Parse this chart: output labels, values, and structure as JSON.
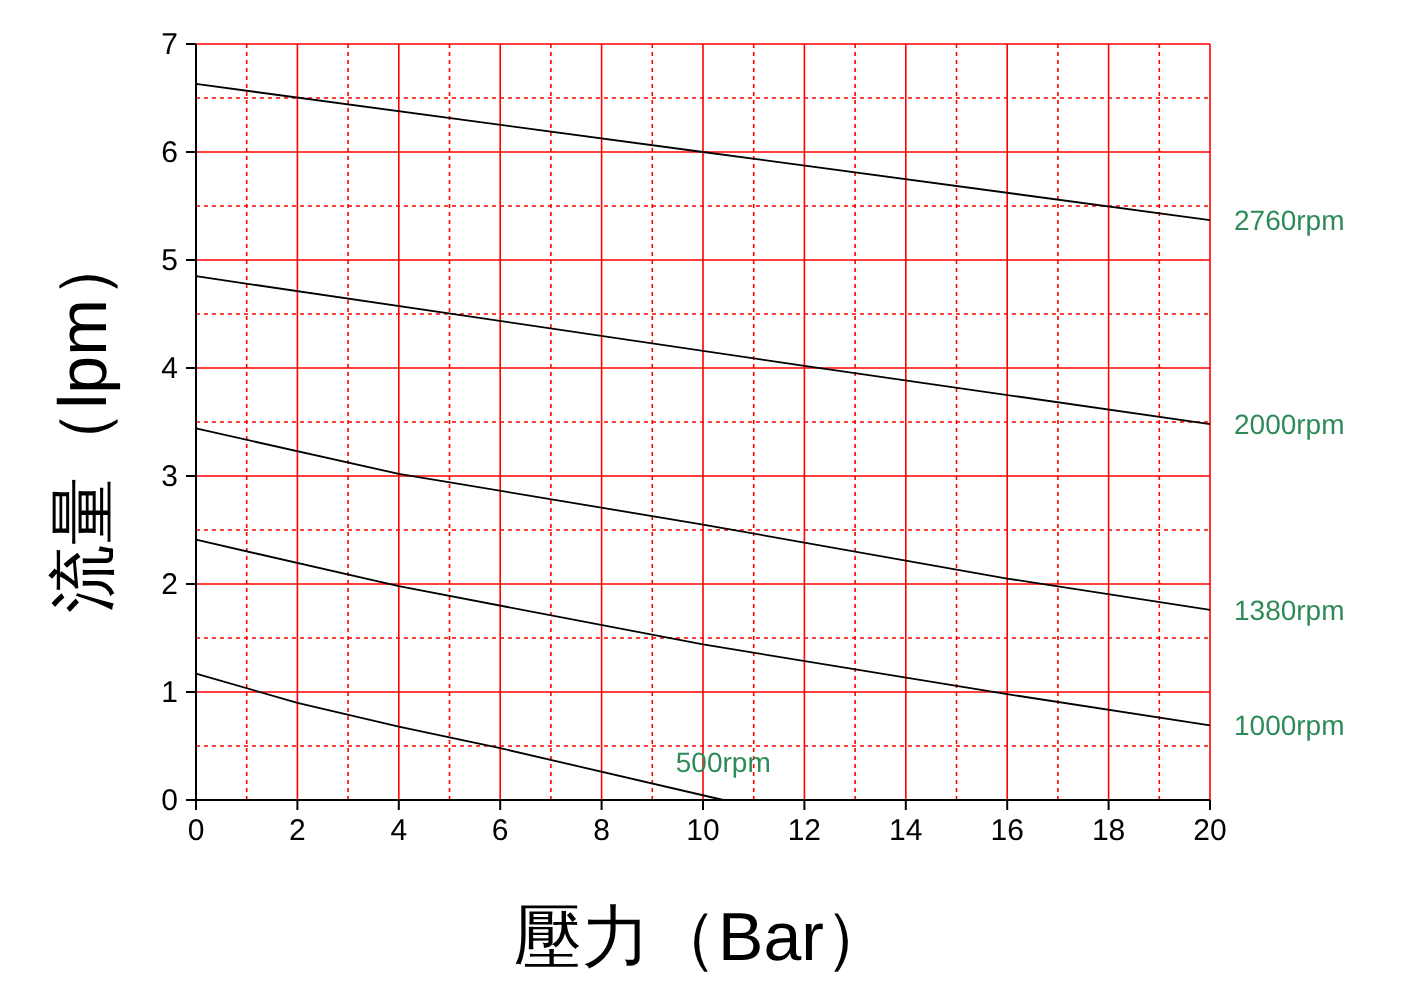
{
  "chart_data": {
    "type": "line",
    "xlabel": "壓力（Bar）",
    "ylabel": "流量（lpm）",
    "xlim": [
      0,
      20
    ],
    "ylim": [
      0,
      7
    ],
    "xticks": [
      0,
      {
        "value": 1,
        "label": null
      },
      2,
      {
        "value": 3,
        "label": null
      },
      4,
      {
        "value": 5,
        "label": null
      },
      6,
      {
        "value": 7,
        "label": null
      },
      8,
      {
        "value": 9,
        "label": null
      },
      10,
      {
        "value": 11,
        "label": null
      },
      12,
      {
        "value": 13,
        "label": null
      },
      14,
      {
        "value": 15,
        "label": null
      },
      16,
      {
        "value": 17,
        "label": null
      },
      18,
      {
        "value": 19,
        "label": null
      },
      20
    ],
    "yticks": [
      0,
      {
        "value": 0.5,
        "label": null
      },
      1,
      {
        "value": 1.5,
        "label": null
      },
      2,
      {
        "value": 2.5,
        "label": null
      },
      3,
      {
        "value": 3.5,
        "label": null
      },
      4,
      {
        "value": 4.5,
        "label": null
      },
      5,
      {
        "value": 5.5,
        "label": null
      },
      6,
      {
        "value": 6.5,
        "label": null
      },
      7
    ],
    "grid": true,
    "marker": "none",
    "line_style": "solid",
    "series": [
      {
        "name": "2760rpm",
        "color": "#000000",
        "x": [
          0,
          10,
          20
        ],
        "values": [
          6.63,
          6.0,
          5.37
        ]
      },
      {
        "name": "2000rpm",
        "color": "#000000",
        "x": [
          0,
          12,
          20
        ],
        "values": [
          4.85,
          4.02,
          3.48
        ]
      },
      {
        "name": "1380rpm",
        "color": "#000000",
        "x": [
          0,
          4,
          10,
          16,
          20
        ],
        "values": [
          3.44,
          3.02,
          2.55,
          2.05,
          1.76
        ]
      },
      {
        "name": "1000rpm",
        "color": "#000000",
        "x": [
          0,
          4,
          10,
          16,
          20
        ],
        "values": [
          2.41,
          1.98,
          1.44,
          0.98,
          0.69
        ]
      },
      {
        "name": "500rpm",
        "color": "#000000",
        "x": [
          0,
          2,
          4,
          6,
          10.4
        ],
        "values": [
          1.17,
          0.9,
          0.68,
          0.48,
          0
        ]
      }
    ]
  }
}
